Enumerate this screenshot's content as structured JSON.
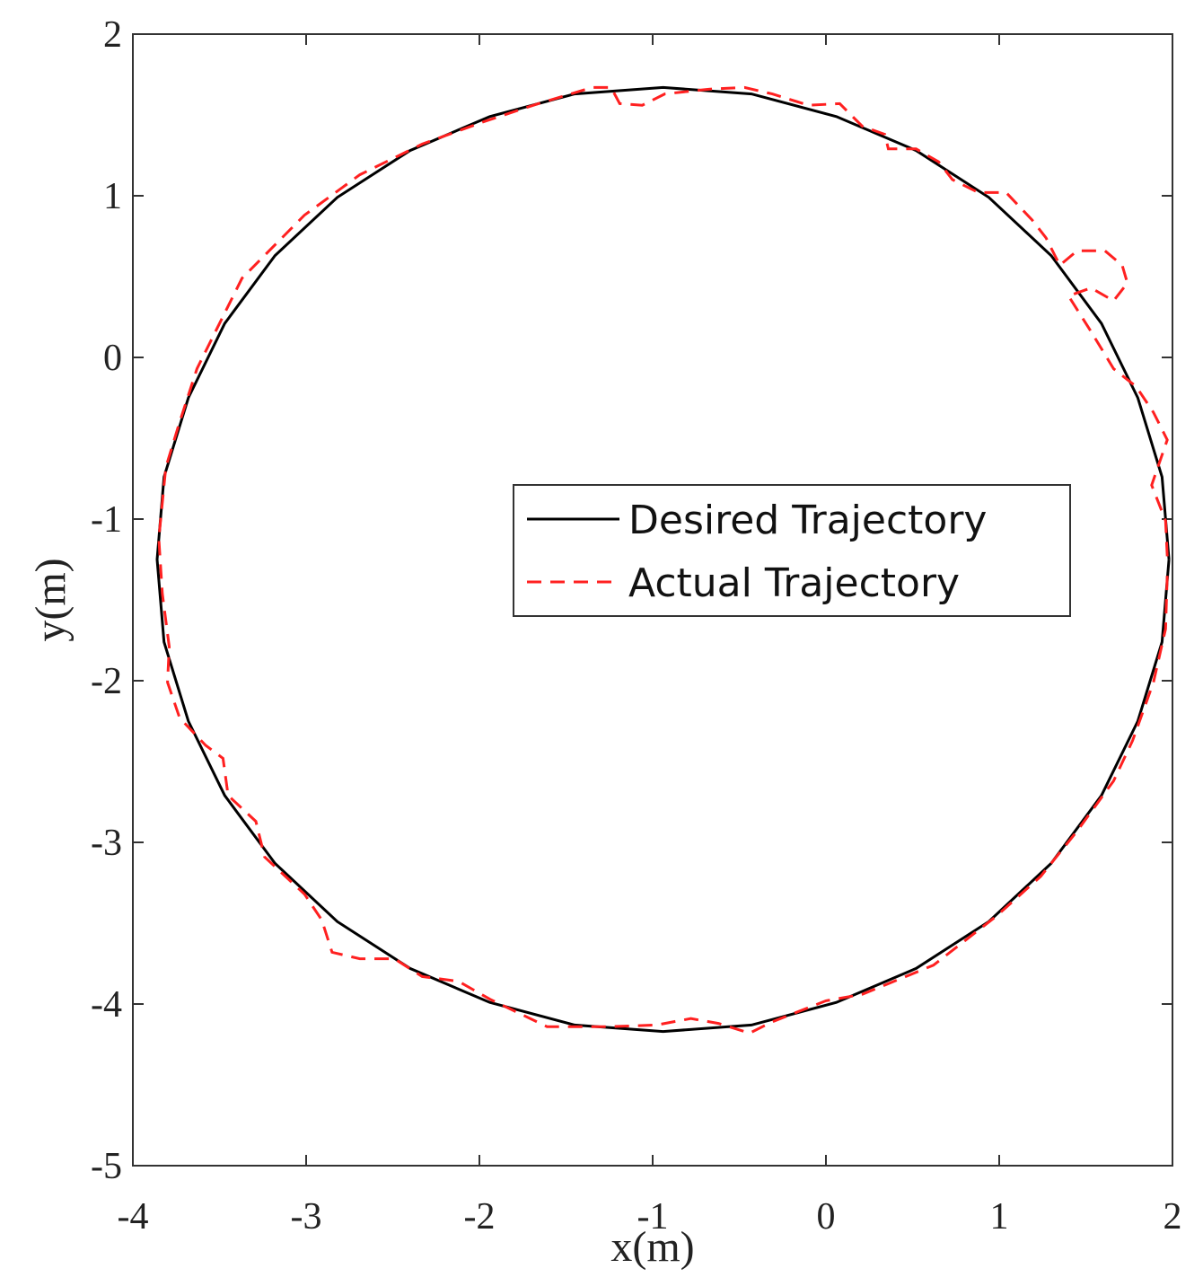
{
  "chart_data": {
    "type": "line",
    "xlabel": "x(m)",
    "ylabel": "y(m)",
    "xlim": [
      -4,
      2
    ],
    "ylim": [
      -5,
      2
    ],
    "xticks": [
      -4,
      -3,
      -2,
      -1,
      0,
      1,
      2
    ],
    "yticks": [
      -5,
      -4,
      -3,
      -2,
      -1,
      0,
      1,
      2
    ],
    "legend": "center right",
    "series": [
      {
        "name": "Desired Trajectory",
        "color": "#000000",
        "dash": "solid",
        "x": [
          1.98,
          1.94,
          1.8,
          1.59,
          1.3,
          0.94,
          0.52,
          0.06,
          -0.43,
          -0.94,
          -1.45,
          -1.94,
          -2.4,
          -2.82,
          -3.18,
          -3.47,
          -3.68,
          -3.82,
          -3.86,
          -3.82,
          -3.68,
          -3.47,
          -3.18,
          -2.82,
          -2.4,
          -1.94,
          -1.45,
          -0.94,
          -0.43,
          0.06,
          0.52,
          0.94,
          1.3,
          1.59,
          1.8,
          1.94,
          1.98
        ],
        "values": [
          -1.25,
          -0.74,
          -0.25,
          0.21,
          0.63,
          0.99,
          1.28,
          1.49,
          1.63,
          1.67,
          1.63,
          1.49,
          1.28,
          0.99,
          0.63,
          0.21,
          -0.25,
          -0.74,
          -1.25,
          -1.76,
          -2.25,
          -2.71,
          -3.13,
          -3.49,
          -3.78,
          -3.99,
          -4.13,
          -4.17,
          -4.13,
          -3.99,
          -3.78,
          -3.49,
          -3.13,
          -2.71,
          -2.25,
          -1.76,
          -1.25
        ]
      },
      {
        "name": "Actual Trajectory",
        "color": "#ff2020",
        "dash": "dashed",
        "x": [
          1.97,
          1.96,
          1.88,
          1.97,
          1.89,
          1.79,
          1.66,
          1.53,
          1.4,
          1.53,
          1.66,
          1.74,
          1.71,
          1.61,
          1.45,
          1.35,
          1.27,
          1.19,
          1.04,
          0.88,
          0.73,
          0.65,
          0.52,
          0.36,
          0.34,
          0.21,
          0.08,
          -0.1,
          -0.31,
          -0.47,
          -0.67,
          -0.93,
          -1.06,
          -1.19,
          -1.24,
          -1.35,
          -1.66,
          -1.97,
          -2.33,
          -2.69,
          -3.01,
          -3.37,
          -3.63,
          -3.73,
          -3.81,
          -3.85,
          -3.83,
          -3.79,
          -3.8,
          -3.73,
          -3.58,
          -3.48,
          -3.45,
          -3.29,
          -3.24,
          -3.01,
          -2.91,
          -2.85,
          -2.69,
          -2.49,
          -2.33,
          -2.12,
          -1.94,
          -1.61,
          -1.24,
          -0.98,
          -0.78,
          -0.62,
          -0.44,
          -0.31,
          0.0,
          0.21,
          0.62,
          0.98,
          1.24,
          1.45,
          1.66,
          1.77,
          1.89,
          1.96,
          1.97
        ],
        "values": [
          -1.23,
          -1.01,
          -0.79,
          -0.51,
          -0.34,
          -0.18,
          -0.07,
          0.16,
          0.38,
          0.43,
          0.35,
          0.46,
          0.57,
          0.66,
          0.66,
          0.57,
          0.74,
          0.85,
          1.02,
          1.02,
          1.1,
          1.21,
          1.29,
          1.29,
          1.38,
          1.43,
          1.57,
          1.56,
          1.63,
          1.67,
          1.66,
          1.63,
          1.56,
          1.57,
          1.67,
          1.67,
          1.57,
          1.46,
          1.32,
          1.13,
          0.88,
          0.49,
          -0.07,
          -0.4,
          -0.68,
          -1.12,
          -1.46,
          -1.79,
          -2.01,
          -2.23,
          -2.4,
          -2.48,
          -2.71,
          -2.87,
          -3.09,
          -3.32,
          -3.48,
          -3.68,
          -3.72,
          -3.72,
          -3.83,
          -3.86,
          -3.97,
          -4.14,
          -4.14,
          -4.13,
          -4.09,
          -4.12,
          -4.18,
          -4.11,
          -3.98,
          -3.94,
          -3.76,
          -3.46,
          -3.21,
          -2.93,
          -2.62,
          -2.37,
          -2.01,
          -1.68,
          -1.34
        ]
      }
    ]
  }
}
